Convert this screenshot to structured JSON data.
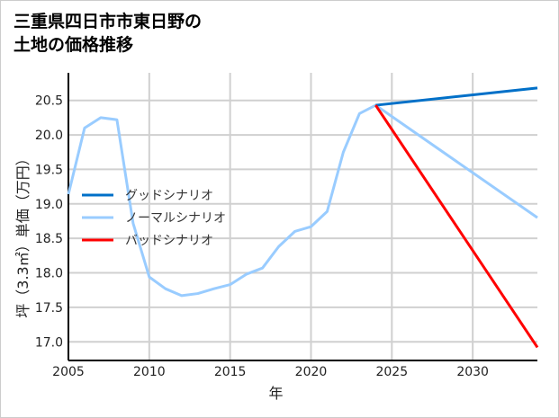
{
  "chart_data": {
    "type": "line",
    "title": "三重県四日市市東日野の\n土地の価格推移",
    "xlabel": "年",
    "ylabel": "坪（3.3㎡）単価（万円）",
    "xlim": [
      2005,
      2034
    ],
    "ylim": [
      16.73,
      20.9
    ],
    "xticks": [
      2005,
      2010,
      2015,
      2020,
      2025,
      2030
    ],
    "yticks": [
      17.0,
      17.5,
      18.0,
      18.5,
      19.0,
      19.5,
      20.0,
      20.5
    ],
    "ytick_labels": [
      "17.0",
      "17.5",
      "18.0",
      "18.5",
      "19.0",
      "19.5",
      "20.0",
      "20.5"
    ],
    "grid": true,
    "legend_position": "center-left",
    "series": [
      {
        "name": "グッドシナリオ",
        "color": "#0070c8",
        "x": [
          2024,
          2034
        ],
        "values": [
          20.43,
          20.68
        ]
      },
      {
        "name": "ノーマルシナリオ",
        "color": "#99ccff",
        "x": [
          2005,
          2006,
          2007,
          2008,
          2009,
          2010,
          2011,
          2012,
          2013,
          2014,
          2015,
          2016,
          2017,
          2018,
          2019,
          2020,
          2021,
          2022,
          2023,
          2024,
          2034
        ],
        "values": [
          19.14,
          20.1,
          20.25,
          20.22,
          18.72,
          17.94,
          17.77,
          17.67,
          17.7,
          17.77,
          17.83,
          17.98,
          18.07,
          18.38,
          18.6,
          18.67,
          18.89,
          19.75,
          20.31,
          20.43,
          18.8
        ]
      },
      {
        "name": "バッドシナリオ",
        "color": "#ff0000",
        "x": [
          2024,
          2034
        ],
        "values": [
          20.43,
          16.92
        ]
      }
    ]
  }
}
